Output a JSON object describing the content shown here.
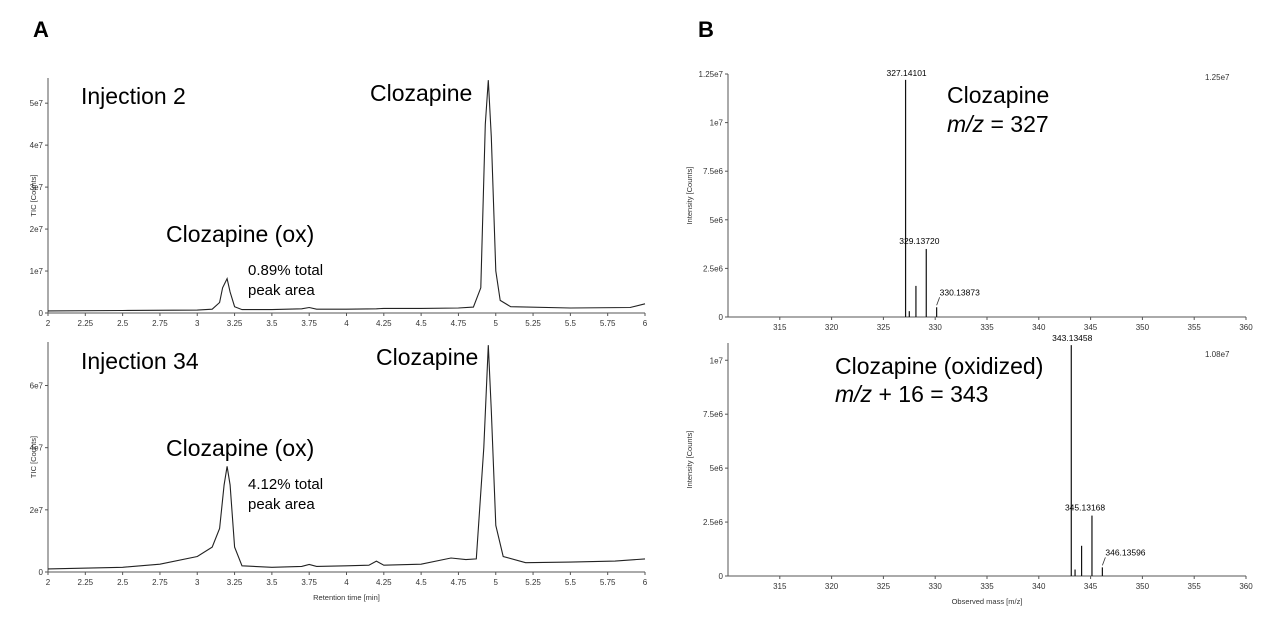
{
  "panels": {
    "a": "A",
    "b": "B"
  },
  "chart_data": [
    {
      "type": "line",
      "id": "tic1",
      "title": "Injection 2",
      "ylabel": "TIC [Counts]",
      "xlabel": "",
      "xlim": [
        2,
        6
      ],
      "ylim": [
        0,
        56000000
      ],
      "xticks": [
        2,
        2.25,
        2.5,
        2.75,
        3,
        3.25,
        3.5,
        3.75,
        4,
        4.25,
        4.5,
        4.75,
        5,
        5.25,
        5.5,
        5.75,
        6
      ],
      "xtick_labels": [
        "2",
        "2.25",
        "2.5",
        "2.75",
        "3",
        "3.25",
        "3.5",
        "3.75",
        "4",
        "4.25",
        "4.5",
        "4.75",
        "5",
        "5.25",
        "5.5",
        "5.75",
        "6"
      ],
      "yticks": [
        0,
        10000000,
        20000000,
        30000000,
        40000000,
        50000000
      ],
      "ytick_labels": [
        "0",
        "1e7",
        "2e7",
        "3e7",
        "4e7",
        "5e7"
      ],
      "x": [
        2,
        2.5,
        3,
        3.1,
        3.15,
        3.17,
        3.2,
        3.22,
        3.25,
        3.3,
        3.5,
        3.7,
        3.75,
        3.8,
        4,
        4.2,
        4.25,
        4.5,
        4.75,
        4.85,
        4.9,
        4.93,
        4.95,
        4.97,
        5.0,
        5.03,
        5.1,
        5.5,
        5.9,
        6
      ],
      "y": [
        500000,
        600000,
        700000,
        900000,
        2500000,
        6000000,
        8200000,
        5000000,
        1500000,
        800000,
        800000,
        1000000,
        1300000,
        900000,
        900000,
        1000000,
        1100000,
        1100000,
        1200000,
        1400000,
        6000000,
        45000000,
        55500000,
        42000000,
        10000000,
        3000000,
        1500000,
        1200000,
        1300000,
        2200000
      ],
      "annotations": [
        {
          "label": "Clozapine",
          "x": 4.95,
          "y": 55500000
        },
        {
          "label": "Clozapine (ox)",
          "x": 3.2,
          "y": 8200000
        },
        {
          "label": "0.89% total",
          "x": 3.45,
          "y": 9000000
        },
        {
          "label": "peak area",
          "x": 3.45,
          "y": 5000000
        }
      ]
    },
    {
      "type": "line",
      "id": "tic2",
      "title": "Injection 34",
      "ylabel": "TIC [Counts]",
      "xlabel": "Retention time [min]",
      "xlim": [
        2,
        6
      ],
      "ylim": [
        0,
        74000000
      ],
      "xticks": [
        2,
        2.25,
        2.5,
        2.75,
        3,
        3.25,
        3.5,
        3.75,
        4,
        4.25,
        4.5,
        4.75,
        5,
        5.25,
        5.5,
        5.75,
        6
      ],
      "xtick_labels": [
        "2",
        "2.25",
        "2.5",
        "2.75",
        "3",
        "3.25",
        "3.5",
        "3.75",
        "4",
        "4.25",
        "4.5",
        "4.75",
        "5",
        "5.25",
        "5.5",
        "5.75",
        "6"
      ],
      "yticks": [
        0,
        20000000,
        40000000,
        60000000
      ],
      "ytick_labels": [
        "0",
        "2e7",
        "4e7",
        "6e7"
      ],
      "x": [
        2,
        2.5,
        2.75,
        3,
        3.1,
        3.15,
        3.18,
        3.2,
        3.22,
        3.25,
        3.3,
        3.5,
        3.7,
        3.75,
        3.8,
        4,
        4.15,
        4.2,
        4.25,
        4.5,
        4.7,
        4.8,
        4.87,
        4.92,
        4.95,
        4.97,
        5.0,
        5.05,
        5.2,
        5.5,
        5.8,
        6
      ],
      "y": [
        1000000,
        1500000,
        2500000,
        5000000,
        8000000,
        14000000,
        28000000,
        34000000,
        28000000,
        8000000,
        2000000,
        1500000,
        1800000,
        2400000,
        1800000,
        2000000,
        2200000,
        3500000,
        2200000,
        2500000,
        4500000,
        4000000,
        4200000,
        40000000,
        73000000,
        52000000,
        15000000,
        5000000,
        3000000,
        3200000,
        3500000,
        4200000
      ],
      "annotations": [
        {
          "label": "Clozapine",
          "x": 4.95,
          "y": 73000000
        },
        {
          "label": "Clozapine (ox)",
          "x": 3.2,
          "y": 34000000
        },
        {
          "label": "4.12% total",
          "x": 3.45,
          "y": 28000000
        },
        {
          "label": "peak area",
          "x": 3.45,
          "y": 22000000
        }
      ]
    },
    {
      "type": "bar",
      "id": "ms1",
      "title": "Clozapine",
      "subtitle_italic": "m/z",
      "subtitle_rest": " = 327",
      "ylabel": "Intensity [Counts]",
      "xlabel": "",
      "xlim": [
        310,
        360
      ],
      "ylim": [
        0,
        12500000
      ],
      "scale_label": "1.25e7",
      "xticks": [
        315,
        320,
        325,
        330,
        335,
        340,
        345,
        350,
        355,
        360
      ],
      "xtick_labels": [
        "315",
        "320",
        "325",
        "330",
        "335",
        "340",
        "345",
        "350",
        "355",
        "360"
      ],
      "yticks": [
        0,
        2500000,
        5000000,
        7500000,
        10000000,
        12500000
      ],
      "ytick_labels": [
        "0",
        "2.5e6",
        "5e6",
        "7.5e6",
        "1e7",
        "1.25e7"
      ],
      "peaks_mz": [
        327.14101,
        327.5,
        328.14,
        329.1372,
        330.13873
      ],
      "peaks_intensity": [
        12200000,
        300000,
        1600000,
        3500000,
        500000
      ],
      "peak_labels": [
        "327.14101",
        "",
        "",
        "329.13720",
        "330.13873"
      ]
    },
    {
      "type": "bar",
      "id": "ms2",
      "title": "Clozapine (oxidized)",
      "subtitle_italic": "m/z",
      "subtitle_rest": " + 16 = 343",
      "ylabel": "Intensity [Counts]",
      "xlabel": "Observed mass [m/z]",
      "xlim": [
        310,
        360
      ],
      "ylim": [
        0,
        10800000
      ],
      "scale_label": "1.08e7",
      "xticks": [
        315,
        320,
        325,
        330,
        335,
        340,
        345,
        350,
        355,
        360
      ],
      "xtick_labels": [
        "315",
        "320",
        "325",
        "330",
        "335",
        "340",
        "345",
        "350",
        "355",
        "360"
      ],
      "yticks": [
        0,
        2500000,
        5000000,
        7500000,
        10000000
      ],
      "ytick_labels": [
        "0",
        "2.5e6",
        "5e6",
        "7.5e6",
        "1e7"
      ],
      "peaks_mz": [
        343.13458,
        343.5,
        344.13,
        345.13168,
        346.13596
      ],
      "peaks_intensity": [
        10700000,
        300000,
        1400000,
        2800000,
        400000
      ],
      "peak_labels": [
        "343.13458",
        "",
        "",
        "345.13168",
        "346.13596"
      ]
    }
  ]
}
